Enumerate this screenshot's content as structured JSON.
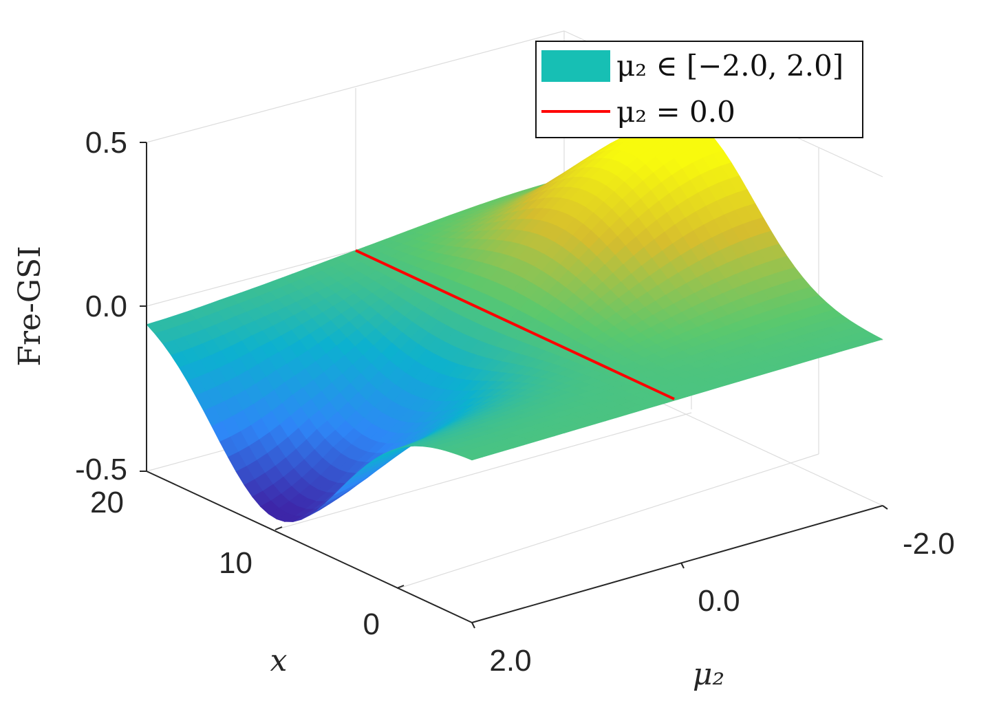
{
  "chart_data": {
    "type": "surface",
    "zlabel": "Fre-GSI",
    "xlabel": "x",
    "ylabel": "μ₂",
    "z_ticks": [
      "0.5",
      "0.0",
      "-0.5"
    ],
    "x_ticks": [
      "20",
      "10",
      "0"
    ],
    "mu_ticks": [
      "-2.0",
      "0.0",
      "2.0"
    ],
    "zlim": [
      -0.5,
      0.5
    ],
    "xlim": [
      0,
      20
    ],
    "mu_lim": [
      -2.0,
      2.0
    ],
    "grid": true,
    "legend_position": "top-right",
    "legend": {
      "surface": "μ₂ ∈ [−2.0, 2.0]",
      "line": "μ₂ = 0.0"
    },
    "colors": {
      "surface_base": "#17bfb4",
      "line": "#ff0000",
      "colormap": [
        "#3d26a8",
        "#2e87f7",
        "#0cb1cf",
        "#5ac86e",
        "#d6bd2e",
        "#f8fa0d"
      ]
    },
    "line_mu": 0.0,
    "surface_peaks": [
      {
        "mu": -1.5,
        "x": 12,
        "z": 0.35
      },
      {
        "mu": 1.5,
        "x": 12,
        "z": -0.42
      }
    ]
  }
}
